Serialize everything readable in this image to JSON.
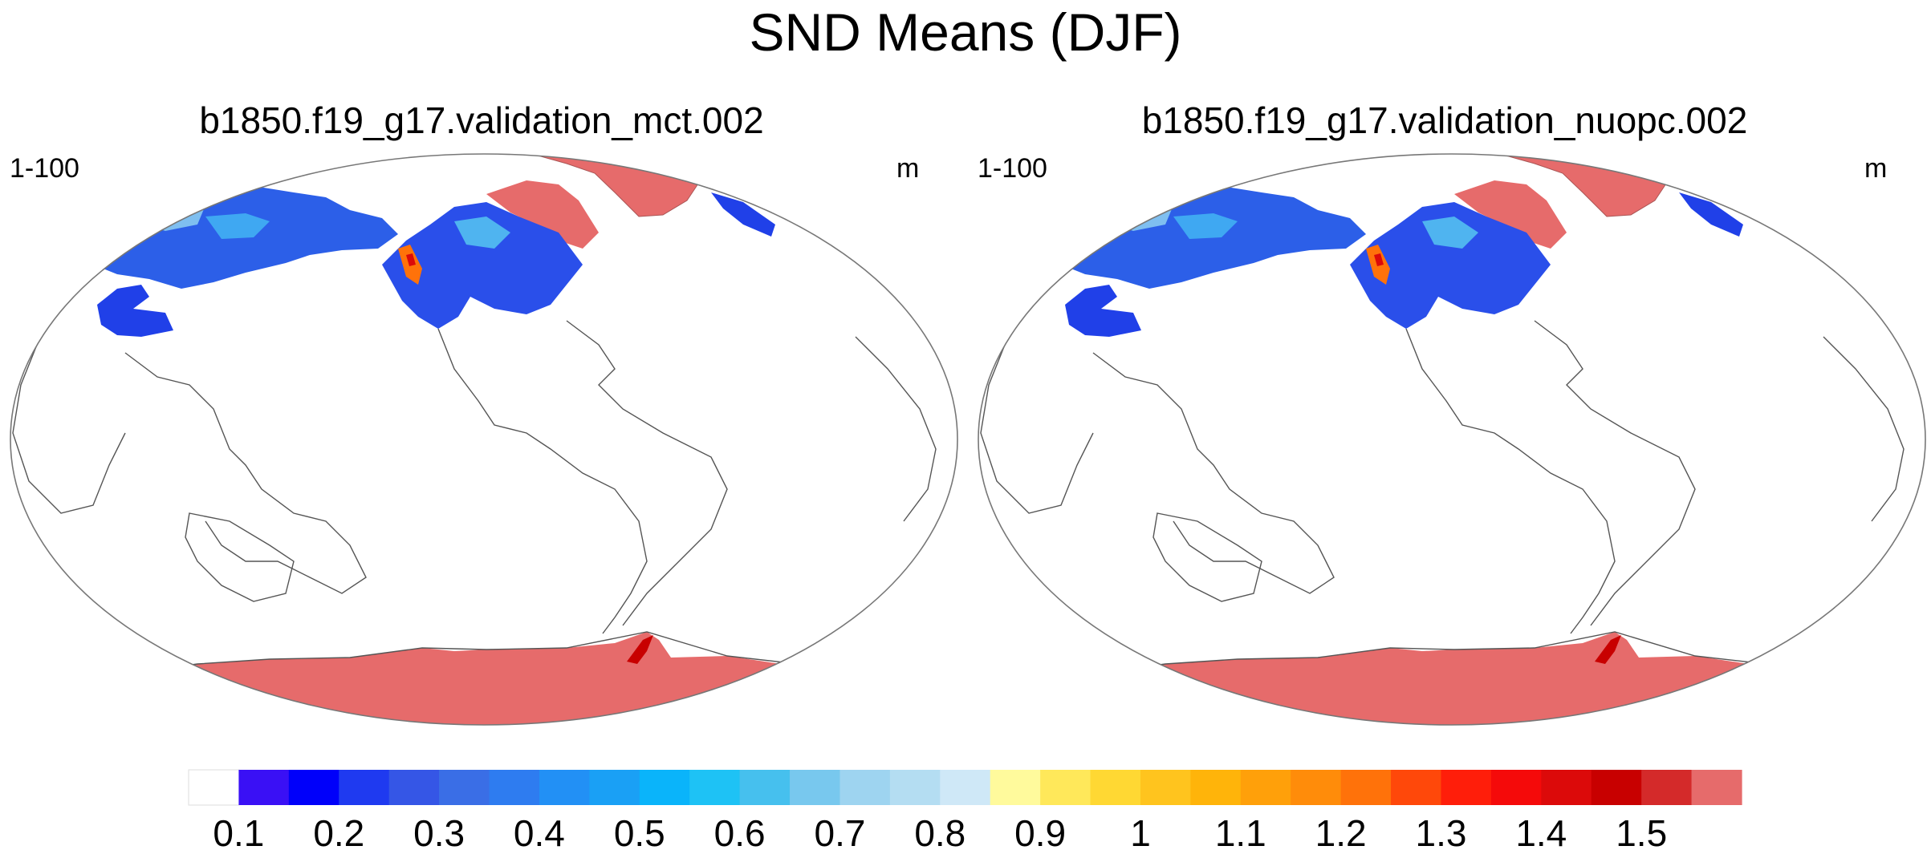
{
  "title": "SND Means (DJF)",
  "panels": [
    {
      "title": "b1850.f19_g17.validation_mct.002",
      "left_label": "1-100",
      "right_label": "m"
    },
    {
      "title": "b1850.f19_g17.validation_nuopc.002",
      "left_label": "1-100",
      "right_label": "m"
    }
  ],
  "colorbar": {
    "colors": [
      "#ffffff",
      "#3a10f5",
      "#0000fa",
      "#1f3af0",
      "#3556e6",
      "#3a6ee6",
      "#2e7cf0",
      "#2290f5",
      "#1aa0f5",
      "#0ab4fa",
      "#1ec2f5",
      "#46c0ee",
      "#78c8ee",
      "#9ed4f0",
      "#b4ddf2",
      "#cfe8f7",
      "#fffa9c",
      "#ffe85a",
      "#ffd833",
      "#ffc41e",
      "#ffb40a",
      "#ffa00a",
      "#ff8c0a",
      "#ff720a",
      "#ff480a",
      "#ff1e0a",
      "#f50a0a",
      "#dc0a0a",
      "#c80000",
      "#d42a2a",
      "#e66b6b"
    ],
    "labels": [
      "0.1",
      "0.2",
      "0.3",
      "0.4",
      "0.5",
      "0.6",
      "0.7",
      "0.8",
      "0.9",
      "1",
      "1.1",
      "1.2",
      "1.3",
      "1.4",
      "1.5"
    ]
  },
  "colors": {
    "antarctica_fill": "#e66b6b",
    "coast_line": "#555555",
    "frame": "#777777"
  }
}
